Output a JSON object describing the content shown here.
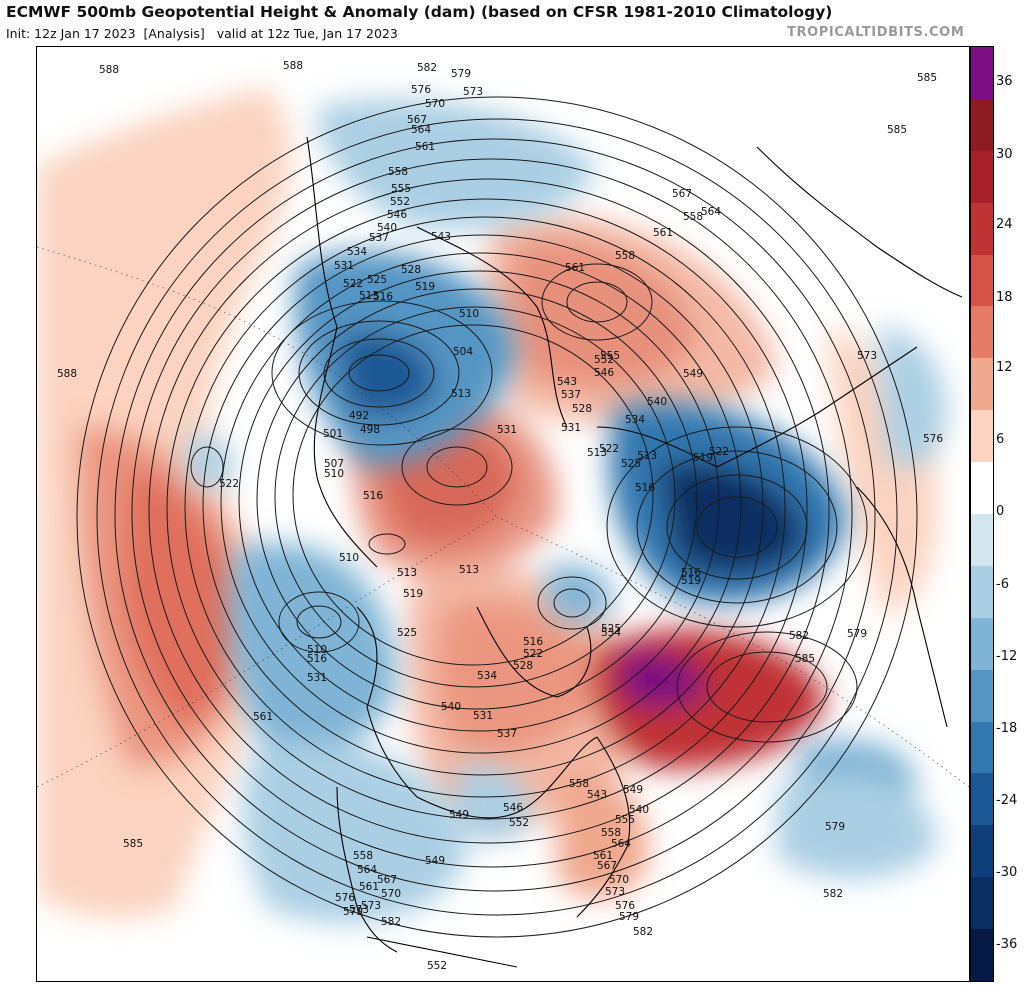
{
  "header": {
    "title": "ECMWF 500mb Geopotential Height & Anomaly (dam) (based on CFSR 1981-2010 Climatology)",
    "init_label": "Init: 12z Jan 17 2023",
    "analysis_label": "[Analysis]",
    "valid_label": "valid at 12z Tue, Jan 17 2023",
    "credit": "TROPICALTIDBITS.COM"
  },
  "colorbar": {
    "ticks": [
      "36",
      "30",
      "24",
      "18",
      "12",
      "6",
      "0",
      "-6",
      "-12",
      "-18",
      "-24",
      "-30",
      "-36"
    ],
    "colors": [
      "#7b0f82",
      "#8e1a22",
      "#a8202a",
      "#c03335",
      "#d65348",
      "#e47c67",
      "#f0a88e",
      "#fbd3c0",
      "#ffffff",
      "#d3e6f0",
      "#aacfe4",
      "#7fb4d6",
      "#5495c4",
      "#3277b0",
      "#1c5896",
      "#0f3f7a",
      "#0a2d62",
      "#061a45"
    ]
  },
  "contour_labels": [
    {
      "text": "588"
    },
    {
      "text": "588"
    },
    {
      "text": "582"
    },
    {
      "text": "579"
    },
    {
      "text": "576"
    },
    {
      "text": "573"
    },
    {
      "text": "570"
    },
    {
      "text": "567"
    },
    {
      "text": "564"
    },
    {
      "text": "561"
    },
    {
      "text": "558"
    },
    {
      "text": "555"
    },
    {
      "text": "552"
    },
    {
      "text": "546"
    },
    {
      "text": "540"
    },
    {
      "text": "537"
    },
    {
      "text": "543"
    },
    {
      "text": "534"
    },
    {
      "text": "531"
    },
    {
      "text": "528"
    },
    {
      "text": "525"
    },
    {
      "text": "522"
    },
    {
      "text": "513"
    },
    {
      "text": "516"
    },
    {
      "text": "519"
    },
    {
      "text": "510"
    },
    {
      "text": "504"
    },
    {
      "text": "492"
    },
    {
      "text": "498"
    },
    {
      "text": "501"
    },
    {
      "text": "507"
    },
    {
      "text": "510"
    },
    {
      "text": "513"
    },
    {
      "text": "522"
    },
    {
      "text": "588"
    },
    {
      "text": "585"
    },
    {
      "text": "516"
    },
    {
      "text": "531"
    },
    {
      "text": "510"
    },
    {
      "text": "513"
    },
    {
      "text": "519"
    },
    {
      "text": "513"
    },
    {
      "text": "525"
    },
    {
      "text": "510"
    },
    {
      "text": "516"
    },
    {
      "text": "531"
    },
    {
      "text": "561"
    },
    {
      "text": "561"
    },
    {
      "text": "558"
    },
    {
      "text": "555"
    },
    {
      "text": "552"
    },
    {
      "text": "546"
    },
    {
      "text": "543"
    },
    {
      "text": "537"
    },
    {
      "text": "528"
    },
    {
      "text": "549"
    },
    {
      "text": "540"
    },
    {
      "text": "534"
    },
    {
      "text": "531"
    },
    {
      "text": "522"
    },
    {
      "text": "513"
    },
    {
      "text": "519"
    },
    {
      "text": "525"
    },
    {
      "text": "516"
    },
    {
      "text": "513"
    },
    {
      "text": "522"
    },
    {
      "text": "516"
    },
    {
      "text": "519"
    },
    {
      "text": "558"
    },
    {
      "text": "564"
    },
    {
      "text": "561"
    },
    {
      "text": "567"
    },
    {
      "text": "573"
    },
    {
      "text": "576"
    },
    {
      "text": "585"
    },
    {
      "text": "579"
    },
    {
      "text": "582"
    },
    {
      "text": "585"
    },
    {
      "text": "579"
    },
    {
      "text": "525"
    },
    {
      "text": "534"
    },
    {
      "text": "516"
    },
    {
      "text": "522"
    },
    {
      "text": "528"
    },
    {
      "text": "534"
    },
    {
      "text": "540"
    },
    {
      "text": "531"
    },
    {
      "text": "537"
    },
    {
      "text": "543"
    },
    {
      "text": "549"
    },
    {
      "text": "540"
    },
    {
      "text": "546"
    },
    {
      "text": "552"
    },
    {
      "text": "558"
    },
    {
      "text": "549"
    },
    {
      "text": "555"
    },
    {
      "text": "558"
    },
    {
      "text": "561"
    },
    {
      "text": "564"
    },
    {
      "text": "567"
    },
    {
      "text": "570"
    },
    {
      "text": "573"
    },
    {
      "text": "576"
    },
    {
      "text": "579"
    },
    {
      "text": "582"
    },
    {
      "text": "582"
    },
    {
      "text": "585"
    },
    {
      "text": "579"
    },
    {
      "text": "552"
    },
    {
      "text": "558"
    },
    {
      "text": "564"
    },
    {
      "text": "561"
    },
    {
      "text": "567"
    },
    {
      "text": "570"
    },
    {
      "text": "573"
    },
    {
      "text": "576"
    },
    {
      "text": "579"
    },
    {
      "text": "582"
    },
    {
      "text": "549"
    },
    {
      "text": "585"
    },
    {
      "text": "573"
    }
  ]
}
